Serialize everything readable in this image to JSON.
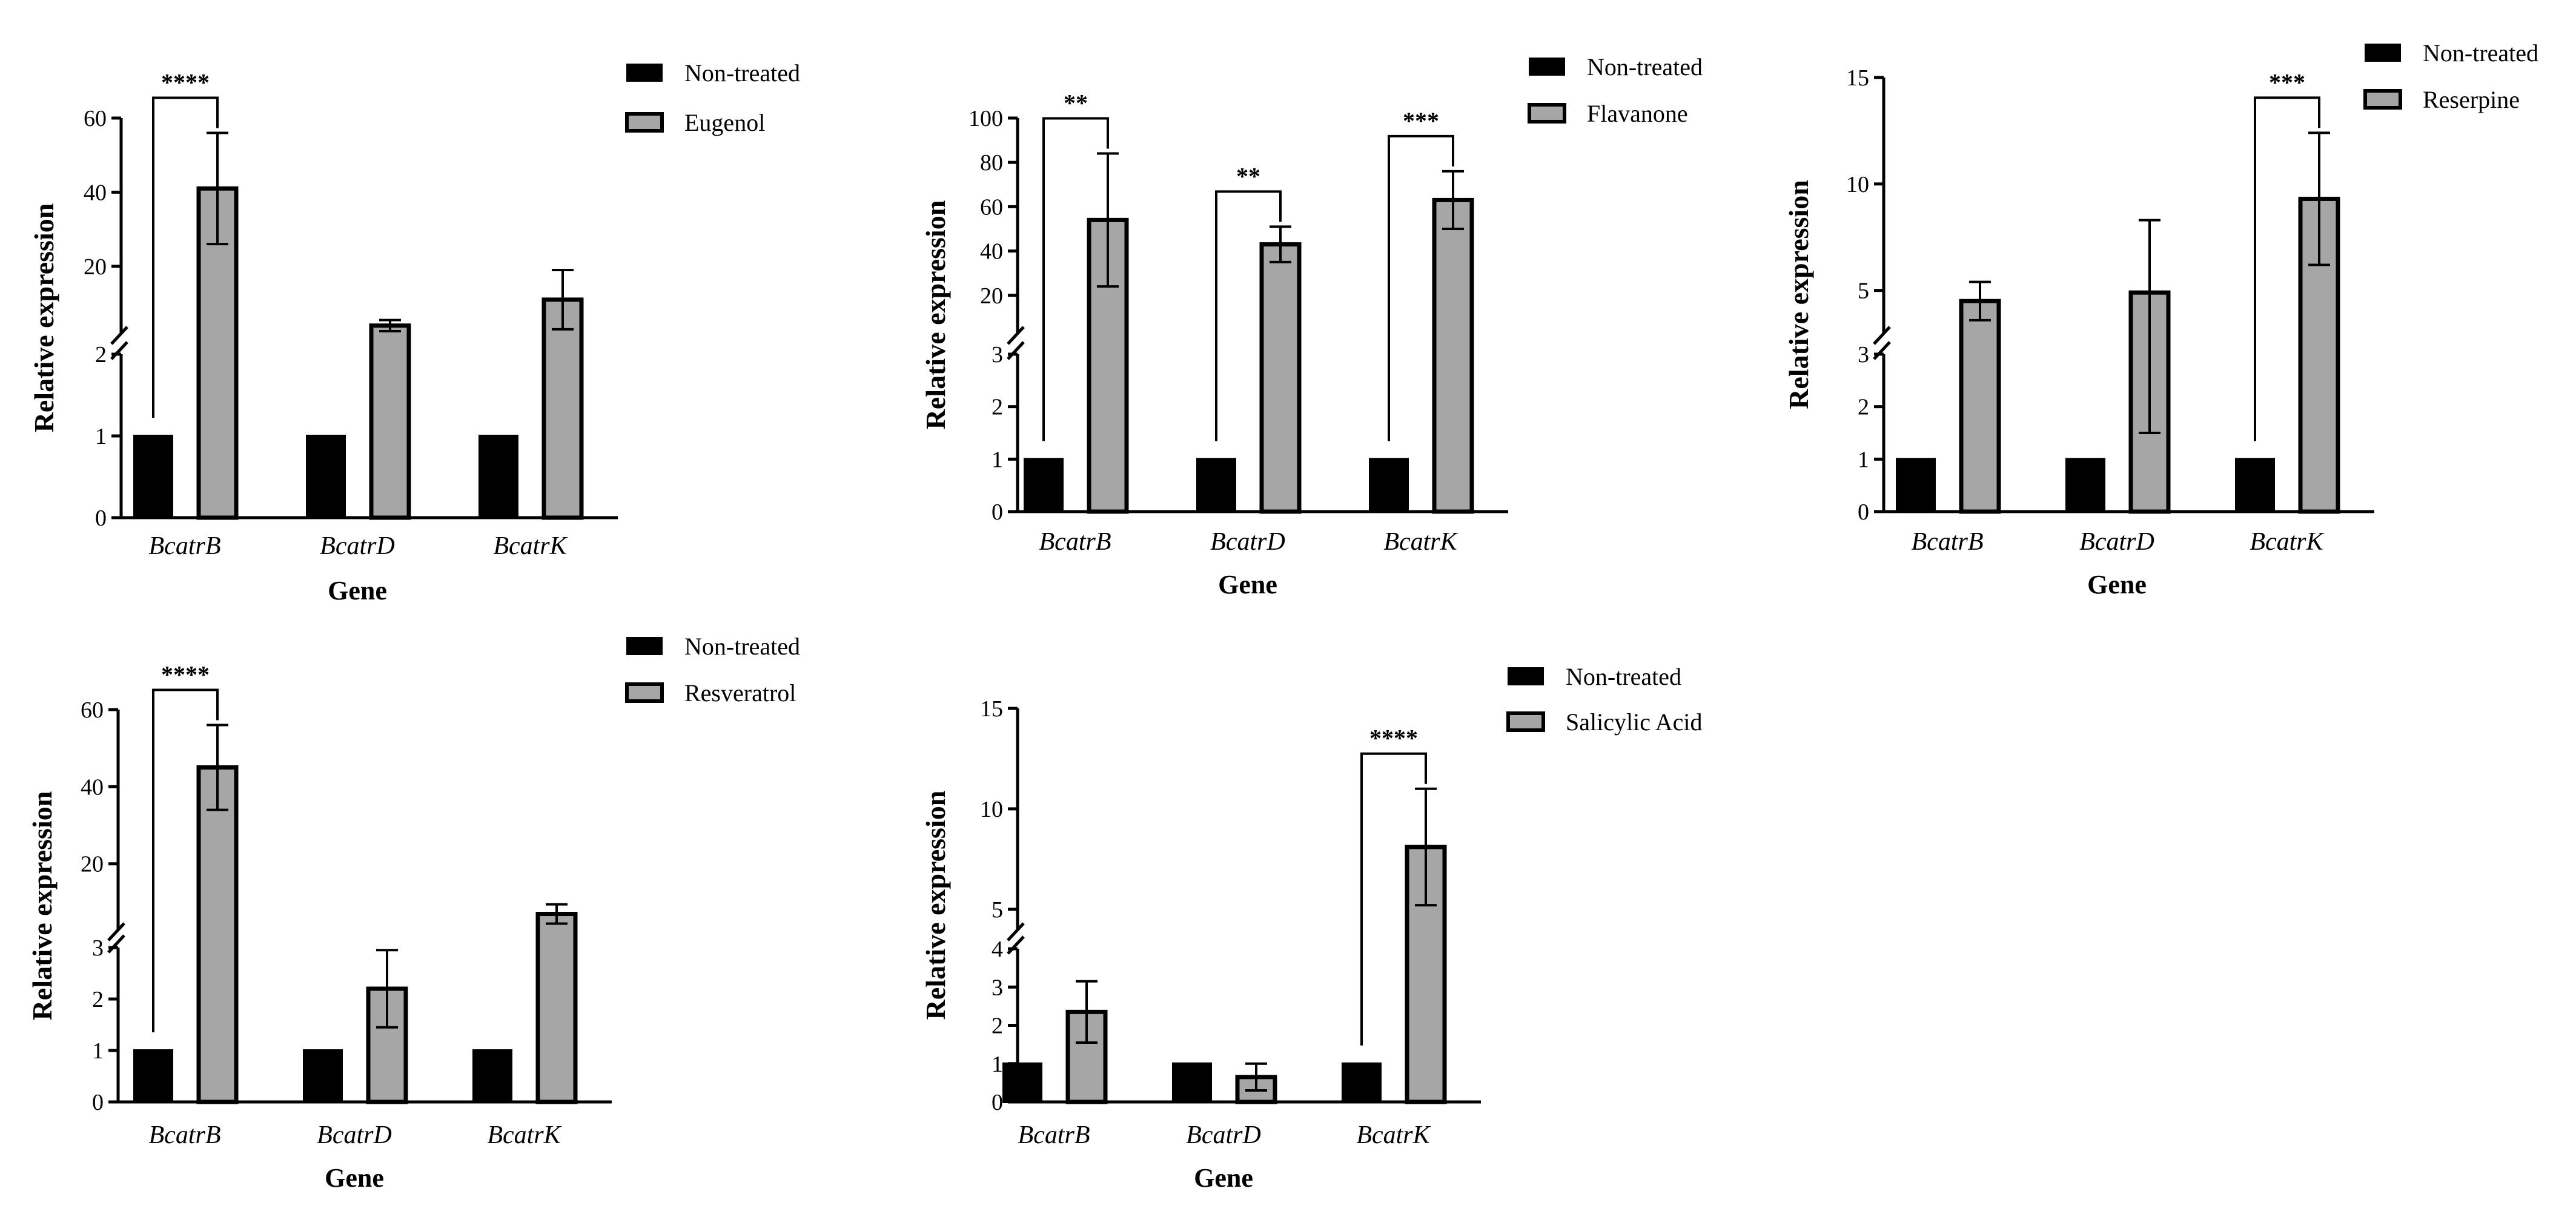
{
  "colors": {
    "nontreated": "#000000",
    "treated": "#a6a6a6",
    "axis": "#000000"
  },
  "chart_data": [
    {
      "type": "bar",
      "categories": [
        "BcatrB",
        "BcatrD",
        "BcatrK"
      ],
      "xlabel": "Gene",
      "ylabel": "Relative expression",
      "ylim": [
        0,
        60
      ],
      "axis_break": {
        "lower": [
          0,
          2
        ],
        "upper": [
          2,
          60
        ]
      },
      "yticks": [
        "0",
        "1",
        "2",
        "20",
        "40",
        "60"
      ],
      "series": [
        {
          "name": "Non-treated",
          "values": [
            1,
            1,
            1
          ],
          "errors": [
            0,
            0,
            0
          ]
        },
        {
          "name": "Eugenol",
          "values": [
            41,
            4,
            11
          ],
          "errors": [
            15,
            1.5,
            8
          ]
        }
      ],
      "significance": [
        {
          "category": "BcatrB",
          "label": "****"
        }
      ]
    },
    {
      "type": "bar",
      "categories": [
        "BcatrB",
        "BcatrD",
        "BcatrK"
      ],
      "xlabel": "Gene",
      "ylabel": "Relative expression",
      "ylim": [
        0,
        100
      ],
      "axis_break": {
        "lower": [
          0,
          3
        ],
        "upper": [
          3,
          100
        ]
      },
      "yticks": [
        "0",
        "1",
        "2",
        "3",
        "20",
        "40",
        "60",
        "80",
        "100"
      ],
      "series": [
        {
          "name": "Non-treated",
          "values": [
            1,
            1,
            1
          ],
          "errors": [
            0,
            0,
            0
          ]
        },
        {
          "name": "Flavanone",
          "values": [
            54,
            43,
            63
          ],
          "errors": [
            30,
            8,
            13
          ]
        }
      ],
      "significance": [
        {
          "category": "BcatrB",
          "label": "**"
        },
        {
          "category": "BcatrD",
          "label": "**"
        },
        {
          "category": "BcatrK",
          "label": "***"
        }
      ]
    },
    {
      "type": "bar",
      "categories": [
        "BcatrB",
        "BcatrD",
        "BcatrK"
      ],
      "xlabel": "Gene",
      "ylabel": "Relative expression",
      "ylim": [
        0,
        15
      ],
      "axis_break": {
        "lower": [
          0,
          3
        ],
        "upper": [
          3,
          15
        ]
      },
      "yticks": [
        "0",
        "1",
        "2",
        "3",
        "5",
        "10",
        "15"
      ],
      "series": [
        {
          "name": "Non-treated",
          "values": [
            1,
            1,
            1
          ],
          "errors": [
            0,
            0,
            0
          ]
        },
        {
          "name": "Reserpine",
          "values": [
            4.5,
            4.9,
            9.3
          ],
          "errors": [
            0.9,
            3.4,
            3.1
          ]
        }
      ],
      "significance": [
        {
          "category": "BcatrK",
          "label": "***"
        }
      ]
    },
    {
      "type": "bar",
      "categories": [
        "BcatrB",
        "BcatrD",
        "BcatrK"
      ],
      "xlabel": "Gene",
      "ylabel": "Relative expression",
      "ylim": [
        0,
        60
      ],
      "axis_break": {
        "lower": [
          0,
          3
        ],
        "upper": [
          3,
          60
        ]
      },
      "yticks": [
        "0",
        "1",
        "2",
        "3",
        "20",
        "40",
        "60"
      ],
      "series": [
        {
          "name": "Non-treated",
          "values": [
            1,
            1,
            1
          ],
          "errors": [
            0,
            0,
            0
          ]
        },
        {
          "name": "Resveratrol",
          "values": [
            45,
            2.2,
            7
          ],
          "errors": [
            11,
            0.75,
            2.5
          ]
        }
      ],
      "significance": [
        {
          "category": "BcatrB",
          "label": "****"
        }
      ]
    },
    {
      "type": "bar",
      "categories": [
        "BcatrB",
        "BcatrD",
        "BcatrK"
      ],
      "xlabel": "Gene",
      "ylabel": "Relative expression",
      "ylim": [
        0,
        15
      ],
      "axis_break": {
        "lower": [
          0,
          4
        ],
        "upper": [
          4,
          15
        ]
      },
      "yticks": [
        "0",
        "1",
        "2",
        "3",
        "4",
        "5",
        "10",
        "15"
      ],
      "series": [
        {
          "name": "Non-treated",
          "values": [
            1,
            1,
            1
          ],
          "errors": [
            0,
            0,
            0
          ]
        },
        {
          "name": "Salicylic Acid",
          "values": [
            2.35,
            0.65,
            8.1
          ],
          "errors": [
            0.8,
            0.35,
            2.9
          ]
        }
      ],
      "significance": [
        {
          "category": "BcatrK",
          "label": "****"
        }
      ]
    }
  ]
}
